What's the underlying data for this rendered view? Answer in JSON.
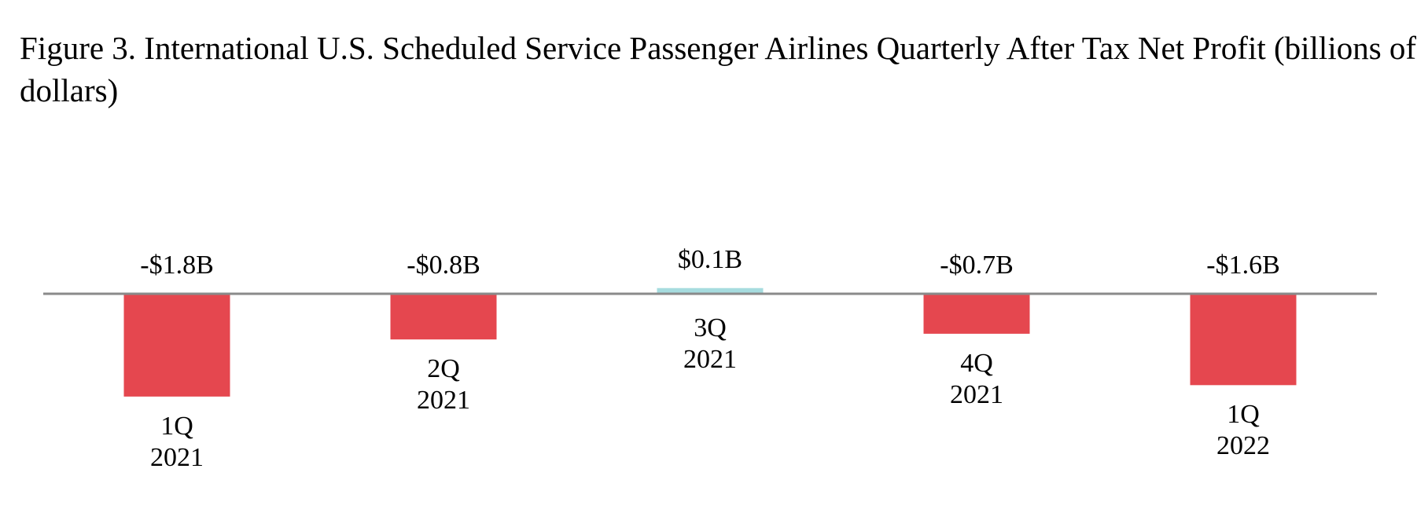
{
  "chart_data": {
    "type": "bar",
    "title": "Figure 3. International U.S. Scheduled Service Passenger Airlines Quarterly After Tax Net Profit (billions of dollars)",
    "categories": [
      "1Q 2021",
      "2Q 2021",
      "3Q 2021",
      "4Q 2021",
      "1Q 2022"
    ],
    "values": [
      -1.8,
      -0.8,
      0.1,
      -0.7,
      -1.6
    ],
    "value_labels": [
      "-$1.8B",
      "-$0.8B",
      "$0.1B",
      "-$0.7B",
      "-$1.6B"
    ],
    "colors": [
      "#e5474f",
      "#e5474f",
      "#a6dcdf",
      "#e5474f",
      "#e5474f"
    ],
    "axis_color": "#8a8a8a"
  }
}
